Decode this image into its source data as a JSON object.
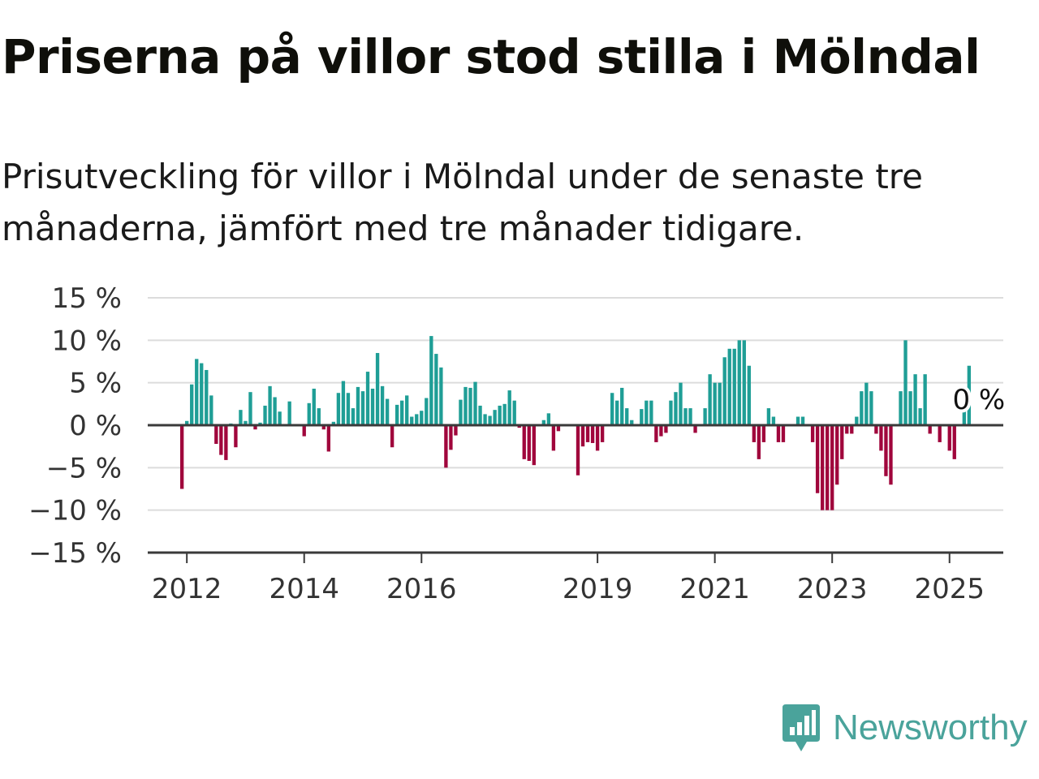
{
  "header": {
    "title": "Priserna på villor stod stilla i Mölndal",
    "subtitle": "Prisutveckling för villor i Mölndal under de senaste tre månaderna, jämfört med tre månader tidigare."
  },
  "brand": {
    "name": "Newsworthy",
    "icon": "newsworthy-logo-icon",
    "color": "#4aa39b"
  },
  "chart_data": {
    "type": "bar",
    "title": "Priserna på villor stod stilla i Mölndal",
    "subtitle": "Prisutveckling för villor i Mölndal under de senaste tre månaderna, jämfört med tre månader tidigare.",
    "y_ticks": [
      "15 %",
      "10 %",
      "5 %",
      "0 %",
      "−5 %",
      "−10 %",
      "−15 %"
    ],
    "x_ticks": [
      "2012",
      "2014",
      "2016",
      "2019",
      "2021",
      "2023",
      "2025"
    ],
    "ylim": [
      -15,
      15
    ],
    "xlim": [
      "2011-05",
      "2025-12"
    ],
    "grid": true,
    "colors": {
      "positive": "#1f9e96",
      "negative": "#a0063c",
      "grid": "#dcdcdc",
      "axis": "#333333"
    },
    "annotation": "0 %",
    "series": [
      {
        "values": [
          [
            "2011-12",
            -7.5
          ],
          [
            "2012-01",
            0.5
          ],
          [
            "2012-02",
            4.8
          ],
          [
            "2012-03",
            7.8
          ],
          [
            "2012-04",
            7.3
          ],
          [
            "2012-05",
            6.5
          ],
          [
            "2012-06",
            3.5
          ],
          [
            "2012-07",
            -2.2
          ],
          [
            "2012-08",
            -3.5
          ],
          [
            "2012-09",
            -4.1
          ],
          [
            "2012-10",
            0.2
          ],
          [
            "2012-11",
            -2.6
          ],
          [
            "2012-12",
            1.8
          ],
          [
            "2013-01",
            0.5
          ],
          [
            "2013-02",
            3.9
          ],
          [
            "2013-03",
            -0.5
          ],
          [
            "2013-04",
            0.3
          ],
          [
            "2013-05",
            2.3
          ],
          [
            "2013-06",
            4.6
          ],
          [
            "2013-07",
            3.3
          ],
          [
            "2013-08",
            1.6
          ],
          [
            "2013-09",
            0.1
          ],
          [
            "2013-10",
            2.8
          ],
          [
            "2013-11",
            0.0
          ],
          [
            "2013-12",
            0.0
          ],
          [
            "2014-01",
            -1.3
          ],
          [
            "2014-02",
            2.6
          ],
          [
            "2014-03",
            4.3
          ],
          [
            "2014-04",
            2.0
          ],
          [
            "2014-05",
            -0.5
          ],
          [
            "2014-06",
            -3.1
          ],
          [
            "2014-07",
            0.4
          ],
          [
            "2014-08",
            3.8
          ],
          [
            "2014-09",
            5.2
          ],
          [
            "2014-10",
            3.8
          ],
          [
            "2014-11",
            2.0
          ],
          [
            "2014-12",
            4.5
          ],
          [
            "2015-01",
            4.0
          ],
          [
            "2015-02",
            6.3
          ],
          [
            "2015-03",
            4.3
          ],
          [
            "2015-04",
            8.5
          ],
          [
            "2015-05",
            4.6
          ],
          [
            "2015-06",
            3.1
          ],
          [
            "2015-07",
            -2.6
          ],
          [
            "2015-08",
            2.4
          ],
          [
            "2015-09",
            2.9
          ],
          [
            "2015-10",
            3.5
          ],
          [
            "2015-11",
            1.0
          ],
          [
            "2015-12",
            1.3
          ],
          [
            "2016-01",
            1.7
          ],
          [
            "2016-02",
            3.2
          ],
          [
            "2016-03",
            10.5
          ],
          [
            "2016-04",
            8.4
          ],
          [
            "2016-05",
            6.8
          ],
          [
            "2016-06",
            -5.0
          ],
          [
            "2016-07",
            -2.9
          ],
          [
            "2016-08",
            -1.2
          ],
          [
            "2016-09",
            3.0
          ],
          [
            "2016-10",
            4.5
          ],
          [
            "2016-11",
            4.4
          ],
          [
            "2016-12",
            5.1
          ],
          [
            "2017-01",
            2.3
          ],
          [
            "2017-02",
            1.3
          ],
          [
            "2017-03",
            1.1
          ],
          [
            "2017-04",
            1.8
          ],
          [
            "2017-05",
            2.3
          ],
          [
            "2017-06",
            2.5
          ],
          [
            "2017-07",
            4.1
          ],
          [
            "2017-08",
            2.9
          ],
          [
            "2017-09",
            -0.3
          ],
          [
            "2017-10",
            -4.0
          ],
          [
            "2017-11",
            -4.2
          ],
          [
            "2017-12",
            -4.7
          ],
          [
            "2018-01",
            0.0
          ],
          [
            "2018-02",
            0.6
          ],
          [
            "2018-03",
            1.4
          ],
          [
            "2018-04",
            -3.0
          ],
          [
            "2018-05",
            -0.7
          ],
          [
            "2018-06",
            0.0
          ],
          [
            "2018-07",
            0.0
          ],
          [
            "2018-08",
            0.0
          ],
          [
            "2018-09",
            -5.9
          ],
          [
            "2018-10",
            -2.5
          ],
          [
            "2018-11",
            -2.0
          ],
          [
            "2018-12",
            -2.1
          ],
          [
            "2019-01",
            -3.0
          ],
          [
            "2019-02",
            -2.0
          ],
          [
            "2019-03",
            0.0
          ],
          [
            "2019-04",
            3.8
          ],
          [
            "2019-05",
            2.9
          ],
          [
            "2019-06",
            4.4
          ],
          [
            "2019-07",
            2.0
          ],
          [
            "2019-08",
            0.6
          ],
          [
            "2019-09",
            0.0
          ],
          [
            "2019-10",
            1.9
          ],
          [
            "2019-11",
            2.9
          ],
          [
            "2019-12",
            2.9
          ],
          [
            "2020-01",
            -2.0
          ],
          [
            "2020-02",
            -1.3
          ],
          [
            "2020-03",
            -0.9
          ],
          [
            "2020-04",
            2.9
          ],
          [
            "2020-05",
            3.9
          ],
          [
            "2020-06",
            5.0
          ],
          [
            "2020-07",
            2.0
          ],
          [
            "2020-08",
            2.0
          ],
          [
            "2020-09",
            -0.9
          ],
          [
            "2020-10",
            0.0
          ],
          [
            "2020-11",
            2.0
          ],
          [
            "2020-12",
            6.0
          ],
          [
            "2021-01",
            5.0
          ],
          [
            "2021-02",
            5.0
          ],
          [
            "2021-03",
            8.0
          ],
          [
            "2021-04",
            9.0
          ],
          [
            "2021-05",
            9.0
          ],
          [
            "2021-06",
            10.0
          ],
          [
            "2021-07",
            10.0
          ],
          [
            "2021-08",
            7.0
          ],
          [
            "2021-09",
            -2.0
          ],
          [
            "2021-10",
            -4.0
          ],
          [
            "2021-11",
            -2.0
          ],
          [
            "2021-12",
            2.0
          ],
          [
            "2022-01",
            1.0
          ],
          [
            "2022-02",
            -2.0
          ],
          [
            "2022-03",
            -2.0
          ],
          [
            "2022-04",
            0.0
          ],
          [
            "2022-05",
            0.0
          ],
          [
            "2022-06",
            1.0
          ],
          [
            "2022-07",
            1.0
          ],
          [
            "2022-08",
            0.0
          ],
          [
            "2022-09",
            -2.0
          ],
          [
            "2022-10",
            -8.0
          ],
          [
            "2022-11",
            -10.0
          ],
          [
            "2022-12",
            -10.0
          ],
          [
            "2023-01",
            -10.0
          ],
          [
            "2023-02",
            -7.0
          ],
          [
            "2023-03",
            -4.0
          ],
          [
            "2023-04",
            -1.0
          ],
          [
            "2023-05",
            -1.0
          ],
          [
            "2023-06",
            1.0
          ],
          [
            "2023-07",
            4.0
          ],
          [
            "2023-08",
            5.0
          ],
          [
            "2023-09",
            4.0
          ],
          [
            "2023-10",
            -1.0
          ],
          [
            "2023-11",
            -3.0
          ],
          [
            "2023-12",
            -6.0
          ],
          [
            "2024-01",
            -7.0
          ],
          [
            "2024-02",
            0.0
          ],
          [
            "2024-03",
            4.0
          ],
          [
            "2024-04",
            10.0
          ],
          [
            "2024-05",
            4.0
          ],
          [
            "2024-06",
            6.0
          ],
          [
            "2024-07",
            2.0
          ],
          [
            "2024-08",
            6.0
          ],
          [
            "2024-09",
            -1.0
          ],
          [
            "2024-10",
            0.0
          ],
          [
            "2024-11",
            -2.0
          ],
          [
            "2024-12",
            0.0
          ],
          [
            "2025-01",
            -3.0
          ],
          [
            "2025-02",
            -4.0
          ],
          [
            "2025-03",
            0.0
          ],
          [
            "2025-04",
            2.0
          ],
          [
            "2025-05",
            7.0
          ],
          [
            "2025-06",
            0.0
          ]
        ]
      }
    ]
  }
}
